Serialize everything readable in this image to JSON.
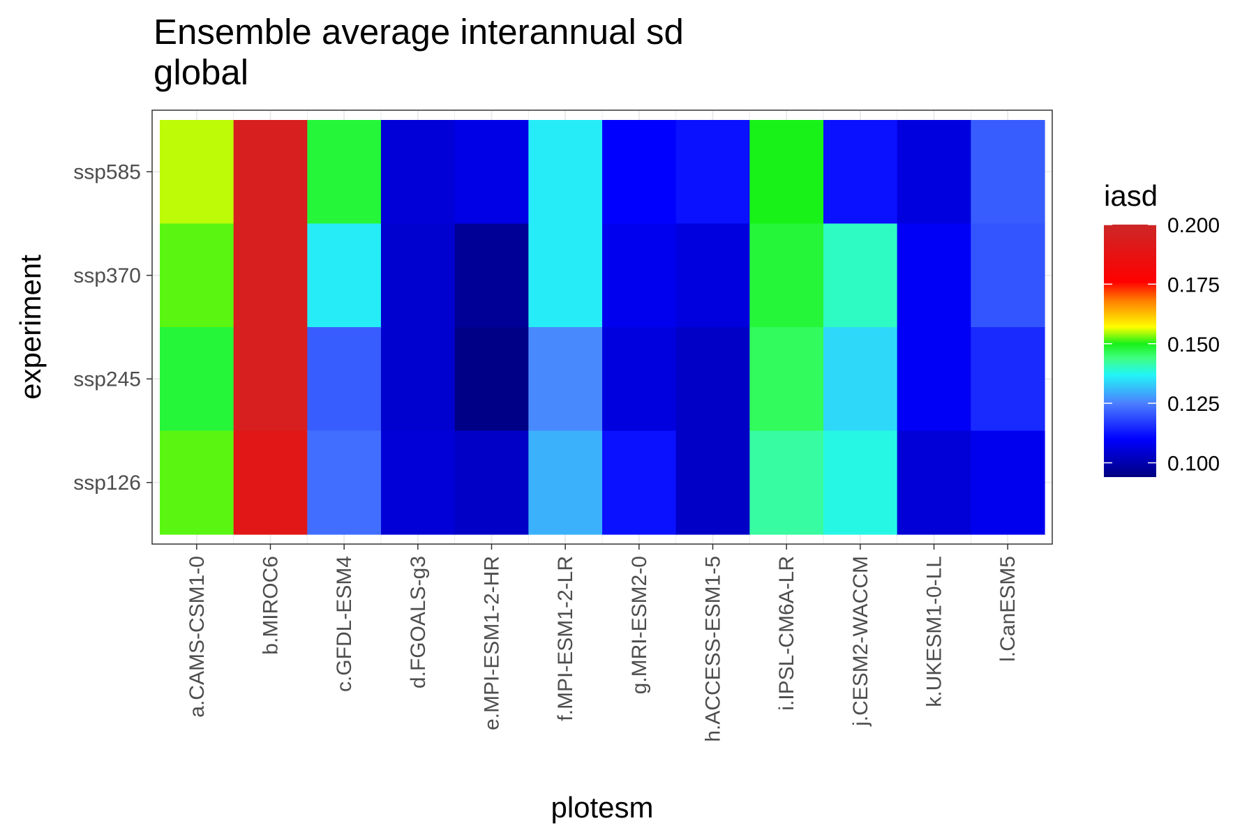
{
  "chart_data": {
    "type": "heatmap",
    "title": "Ensemble average interannual sd",
    "subtitle": "global",
    "xlabel": "plotesm",
    "ylabel": "experiment",
    "x_categories": [
      "a.CAMS-CSM1-0",
      "b.MIROC6",
      "c.GFDL-ESM4",
      "d.FGOALS-g3",
      "e.MPI-ESM1-2-HR",
      "f.MPI-ESM1-2-LR",
      "g.MRI-ESM2-0",
      "h.ACCESS-ESM1-5",
      "i.IPSL-CM6A-LR",
      "j.CESM2-WACCM",
      "k.UKESM1-0-LL",
      "l.CanESM5"
    ],
    "y_categories": [
      "ssp585",
      "ssp370",
      "ssp245",
      "ssp126"
    ],
    "values": [
      [
        0.155,
        0.195,
        0.148,
        0.105,
        0.107,
        0.136,
        0.11,
        0.112,
        0.15,
        0.112,
        0.106,
        0.121
      ],
      [
        0.152,
        0.195,
        0.136,
        0.104,
        0.097,
        0.136,
        0.108,
        0.106,
        0.148,
        0.14,
        0.109,
        0.12
      ],
      [
        0.148,
        0.195,
        0.121,
        0.104,
        0.095,
        0.126,
        0.106,
        0.103,
        0.146,
        0.134,
        0.109,
        0.115
      ],
      [
        0.152,
        0.19,
        0.123,
        0.105,
        0.103,
        0.13,
        0.112,
        0.103,
        0.142,
        0.138,
        0.105,
        0.108
      ]
    ],
    "legend": {
      "title": "iasd",
      "ticks": [
        0.2,
        0.175,
        0.15,
        0.125,
        0.1
      ],
      "tick_labels": [
        "0.200",
        "0.175",
        "0.150",
        "0.125",
        "0.100"
      ],
      "range": [
        0.094,
        0.2
      ],
      "placement": "right"
    },
    "colorscale": [
      {
        "v": 0.094,
        "color": "#00007f"
      },
      {
        "v": 0.11,
        "color": "#0000ff"
      },
      {
        "v": 0.125,
        "color": "#4c7fff"
      },
      {
        "v": 0.137,
        "color": "#22f6f6"
      },
      {
        "v": 0.144,
        "color": "#3fff7f"
      },
      {
        "v": 0.15,
        "color": "#18f218"
      },
      {
        "v": 0.157,
        "color": "#ffff00"
      },
      {
        "v": 0.168,
        "color": "#ff7f00"
      },
      {
        "v": 0.176,
        "color": "#ff0000"
      },
      {
        "v": 0.2,
        "color": "#cc2727"
      }
    ],
    "panel_background": "#ebebeb",
    "grid": true
  }
}
